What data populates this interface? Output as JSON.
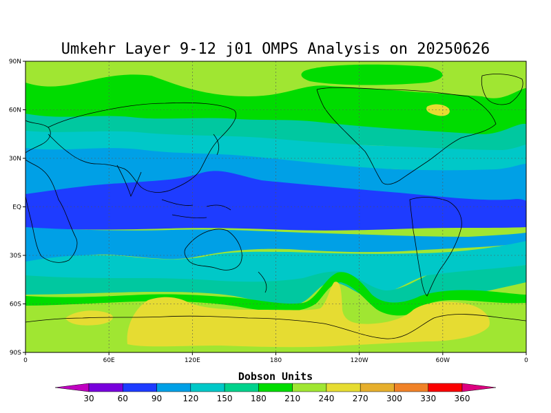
{
  "title": "Umkehr Layer 9-12 j01 OMPS Analysis on 20250626",
  "lat_ticks": [
    "90N",
    "60N",
    "30N",
    "EQ",
    "30S",
    "60S",
    "90S"
  ],
  "lon_ticks": [
    "0",
    "60E",
    "120E",
    "180",
    "120W",
    "60W",
    "0"
  ],
  "colorbar": {
    "title": "Dobson Units",
    "labels": [
      "30",
      "60",
      "90",
      "120",
      "150",
      "180",
      "210",
      "240",
      "270",
      "300",
      "330",
      "360"
    ],
    "colors": [
      "#c000c0",
      "#7800dc",
      "#1e3cff",
      "#00a0e6",
      "#00c8c8",
      "#00d28c",
      "#00dc00",
      "#a0e632",
      "#e6dc32",
      "#e6af2d",
      "#f08228",
      "#fa0000",
      "#dc0080"
    ]
  },
  "map_colors": {
    "band_180_210": "#00c8a0",
    "band_150_180": "#00c8c8",
    "band_120_150": "#00a0e6",
    "band_90_120": "#1e3cff",
    "band_240_270": "#e6dc32",
    "band_270_300": "#e6af2d",
    "band_210_240": "#a0e632",
    "band_200_220": "#00dc00"
  },
  "chart_data": {
    "type": "heatmap",
    "title": "Umkehr Layer 9-12 j01 OMPS Analysis on 20250626",
    "xlabel": "",
    "ylabel": "",
    "x_range_deg_east": [
      0,
      360
    ],
    "y_range_deg_north": [
      -90,
      90
    ],
    "units": "Dobson Units",
    "levels": [
      30,
      60,
      90,
      120,
      150,
      180,
      210,
      240,
      270,
      300,
      330,
      360
    ],
    "zonal_pattern": [
      {
        "lat": 80,
        "value_range": "210-240"
      },
      {
        "lat": 60,
        "value_range": "180-240"
      },
      {
        "lat": 40,
        "value_range": "150-180"
      },
      {
        "lat": 20,
        "value_range": "90-150"
      },
      {
        "lat": 0,
        "value_range": "60-90"
      },
      {
        "lat": -20,
        "value_range": "90-150"
      },
      {
        "lat": -40,
        "value_range": "150-210"
      },
      {
        "lat": -60,
        "value_range": "210-240"
      },
      {
        "lat": -75,
        "value_range": "240-270"
      }
    ],
    "grid": true
  }
}
